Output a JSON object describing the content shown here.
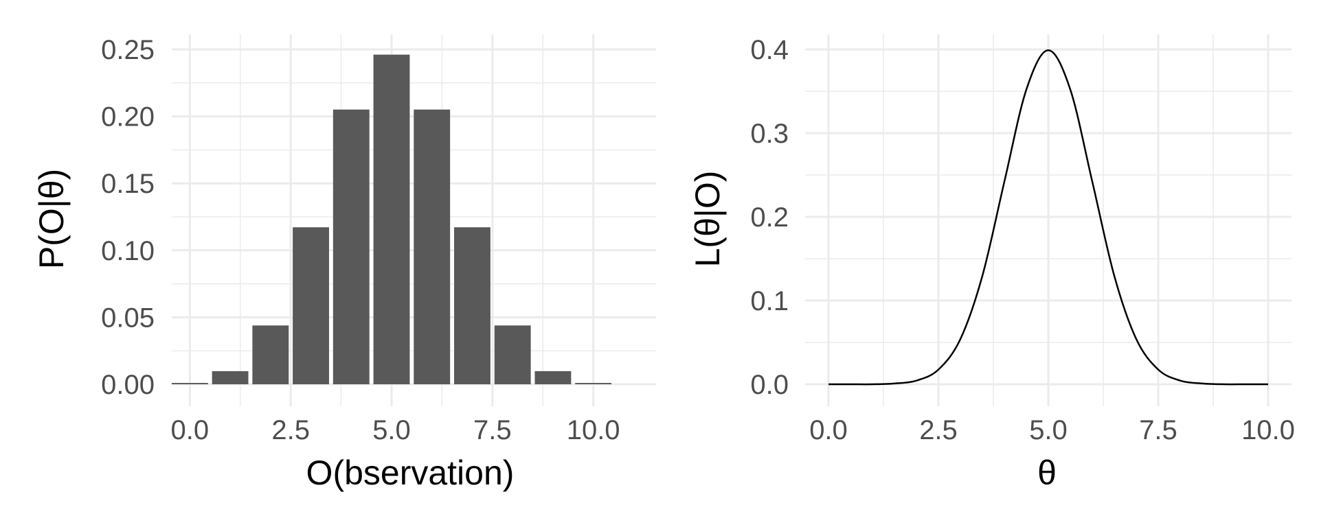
{
  "chart_data": [
    {
      "type": "bar",
      "xlabel": "O(bservation)",
      "ylabel": "P(O|θ)",
      "x": [
        0,
        1,
        2,
        3,
        4,
        5,
        6,
        7,
        8,
        9,
        10
      ],
      "values": [
        0.001,
        0.0098,
        0.0439,
        0.1172,
        0.2051,
        0.2461,
        0.2051,
        0.1172,
        0.0439,
        0.0098,
        0.001
      ],
      "xlim": [
        -0.5,
        10.5
      ],
      "ylim": [
        0,
        0.25
      ],
      "xticks": [
        0,
        2.5,
        5,
        7.5,
        10
      ],
      "xtick_labels": [
        "0.0",
        "2.5",
        "5.0",
        "7.5",
        "10.0"
      ],
      "yticks": [
        0,
        0.05,
        0.1,
        0.15,
        0.2,
        0.25
      ],
      "ytick_labels": [
        "0.00",
        "0.05",
        "0.10",
        "0.15",
        "0.20",
        "0.25"
      ],
      "grid": true,
      "bar_color": "#595959"
    },
    {
      "type": "line",
      "xlabel": "θ",
      "ylabel": "L(θ|O)",
      "x": [
        0,
        0.5,
        1,
        1.5,
        2,
        2.5,
        3,
        3.5,
        4,
        4.5,
        5,
        5.5,
        6,
        6.5,
        7,
        7.5,
        8,
        8.5,
        9,
        9.5,
        10
      ],
      "y": [
        0,
        0,
        0,
        0.0009,
        0.0044,
        0.0175,
        0.054,
        0.1295,
        0.242,
        0.352,
        0.399,
        0.352,
        0.242,
        0.1295,
        0.054,
        0.0175,
        0.0044,
        0.0009,
        0,
        0,
        0
      ],
      "xlim": [
        0,
        10
      ],
      "ylim": [
        0,
        0.4
      ],
      "xticks": [
        0,
        2.5,
        5,
        7.5,
        10
      ],
      "xtick_labels": [
        "0.0",
        "2.5",
        "5.0",
        "7.5",
        "10.0"
      ],
      "yticks": [
        0,
        0.1,
        0.2,
        0.3,
        0.4
      ],
      "ytick_labels": [
        "0.0",
        "0.1",
        "0.2",
        "0.3",
        "0.4"
      ],
      "grid": true,
      "line_color": "#000000"
    }
  ]
}
